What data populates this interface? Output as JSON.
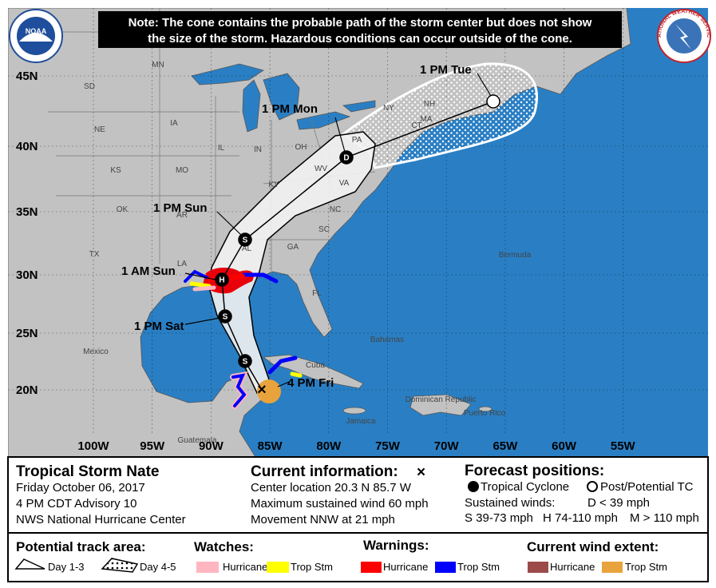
{
  "note": {
    "lines": [
      "Note: The cone contains the probable path of the storm center but does not show",
      "the size of the storm. Hazardous conditions can occur outside of the cone."
    ]
  },
  "logos": {
    "noaa": "NOAA",
    "nws": "NATIONAL WEATHER SERVICE"
  },
  "map": {
    "lat_labels": [
      "45N",
      "40N",
      "35N",
      "30N",
      "25N",
      "20N"
    ],
    "lon_labels": [
      "100W",
      "95W",
      "90W",
      "85W",
      "80W",
      "75W",
      "70W",
      "65W",
      "60W",
      "55W"
    ],
    "places": [
      "MN",
      "SD",
      "NE",
      "IA",
      "KS",
      "MO",
      "IL",
      "IN",
      "OH",
      "OK",
      "AR",
      "TX",
      "LA",
      "AL",
      "GA",
      "KY",
      "WV",
      "VA",
      "NC",
      "SC",
      "PA",
      "NY",
      "NH",
      "MA",
      "CT",
      "FL",
      "Mexico",
      "Cuba",
      "Bahamas",
      "Jamaica",
      "Dominican Republic",
      "Puerto Rico",
      "Bermuda",
      "Guatemala"
    ],
    "track_labels": [
      "1 PM Tue",
      "1 PM Mon",
      "1 PM Sun",
      "1 AM Sun",
      "1 PM Sat",
      "4 PM Fri"
    ],
    "symbols": [
      "D",
      "D",
      "S",
      "H",
      "S",
      "S"
    ]
  },
  "panel": {
    "storm": {
      "name": "Tropical Storm Nate",
      "date": "Friday October 06, 2017",
      "advisory": "4 PM CDT Advisory 10",
      "center": "NWS National Hurricane Center"
    },
    "current": {
      "heading": "Current information:",
      "symbol": "×",
      "lines": [
        "Center location 20.3 N 85.7 W",
        "Maximum sustained wind 60 mph",
        "Movement NNW at 21 mph"
      ]
    },
    "forecast": {
      "heading": "Forecast positions:",
      "tropical": "Tropical Cyclone",
      "post": "Post/Potential TC",
      "winds_heading": "Sustained winds:",
      "d": "D < 39 mph",
      "s": "S 39-73 mph",
      "h": "H 74-110 mph",
      "m": "M > 110 mph"
    },
    "track_area": {
      "heading": "Potential track area:",
      "day13": "Day 1-3",
      "day45": "Day 4-5"
    },
    "watches": {
      "heading": "Watches:",
      "hurricane": "Hurricane",
      "trop": "Trop Stm"
    },
    "warnings": {
      "heading": "Warnings:",
      "hurricane": "Hurricane",
      "trop": "Trop Stm"
    },
    "wind": {
      "heading": "Current wind extent:",
      "hurricane": "Hurricane",
      "trop": "Trop Stm"
    }
  }
}
